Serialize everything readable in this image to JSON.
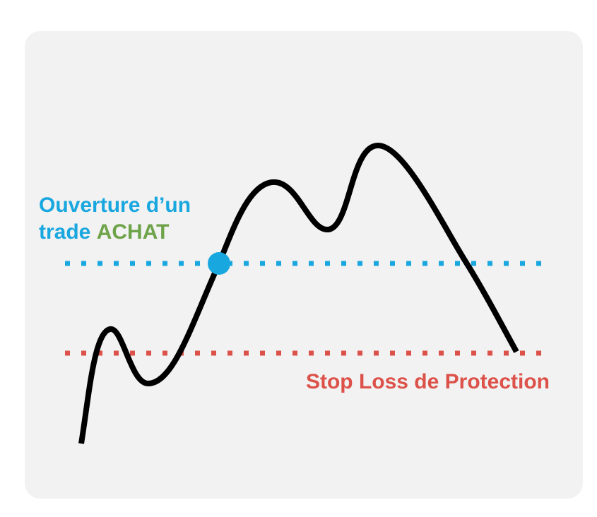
{
  "labels": {
    "entry_line1": "Ouverture d’un",
    "entry_line2_prefix": "trade ",
    "entry_line2_action": "ACHAT",
    "stop_loss": "Stop Loss de Protection"
  },
  "colors": {
    "card_background": "#f2f2f2",
    "price_curve": "#000000",
    "entry_line": "#19a7df",
    "entry_point": "#19a7df",
    "entry_text": "#19a7df",
    "buy_text": "#6ea34a",
    "stop_loss_line": "#dc5149",
    "stop_loss_text": "#dc5149"
  }
}
